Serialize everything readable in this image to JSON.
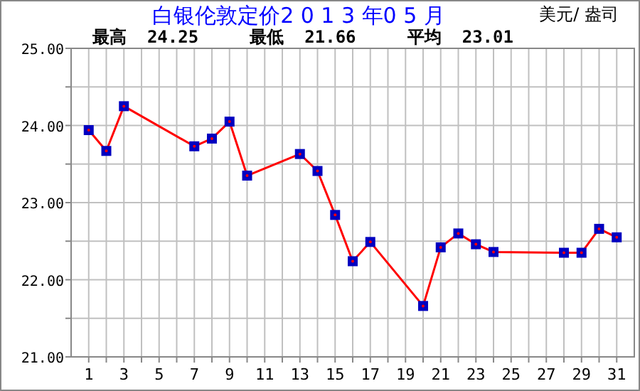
{
  "chart_data": {
    "type": "line",
    "title": "白银伦敦定价2 0 1 3 年0 5 月",
    "subtitle": "最高  24.25     最低  21.66     平均  23.01",
    "ylabel": "美元/ 盎司",
    "x": [
      1,
      2,
      3,
      7,
      8,
      9,
      10,
      13,
      14,
      15,
      16,
      17,
      20,
      21,
      22,
      23,
      24,
      28,
      29,
      30,
      31
    ],
    "series": [
      {
        "color": "#ff0000",
        "values": [
          23.94,
          23.67,
          24.25,
          23.73,
          23.83,
          24.05,
          23.35,
          23.63,
          23.41,
          22.84,
          22.24,
          22.49,
          21.66,
          22.42,
          22.6,
          22.46,
          22.36,
          22.35,
          22.35,
          22.66,
          22.55
        ]
      }
    ],
    "xlim": [
      0,
      32
    ],
    "xticks": [
      1,
      {
        "value": 2,
        "label": null
      },
      3,
      {
        "value": 4,
        "label": null
      },
      5,
      {
        "value": 6,
        "label": null
      },
      7,
      {
        "value": 8,
        "label": null
      },
      9,
      {
        "value": 10,
        "label": null
      },
      11,
      {
        "value": 12,
        "label": null
      },
      13,
      {
        "value": 14,
        "label": null
      },
      15,
      {
        "value": 16,
        "label": null
      },
      17,
      {
        "value": 18,
        "label": null
      },
      19,
      {
        "value": 20,
        "label": null
      },
      21,
      {
        "value": 22,
        "label": null
      },
      23,
      {
        "value": 24,
        "label": null
      },
      25,
      {
        "value": 26,
        "label": null
      },
      27,
      {
        "value": 28,
        "label": null
      },
      29,
      {
        "value": 30,
        "label": null
      },
      31
    ],
    "ylim": [
      21,
      25
    ],
    "yticks": [
      {
        "value": 21,
        "label": "21.00"
      },
      {
        "value": 21.5,
        "label": null
      },
      {
        "value": 22,
        "label": "22.00"
      },
      {
        "value": 22.5,
        "label": null
      },
      {
        "value": 23,
        "label": "23.00"
      },
      {
        "value": 23.5,
        "label": null
      },
      {
        "value": 24,
        "label": "24.00"
      },
      {
        "value": 24.5,
        "label": null
      },
      {
        "value": 25,
        "label": "25.00"
      }
    ],
    "grid": true,
    "marker": "square",
    "line_style": "solid"
  }
}
